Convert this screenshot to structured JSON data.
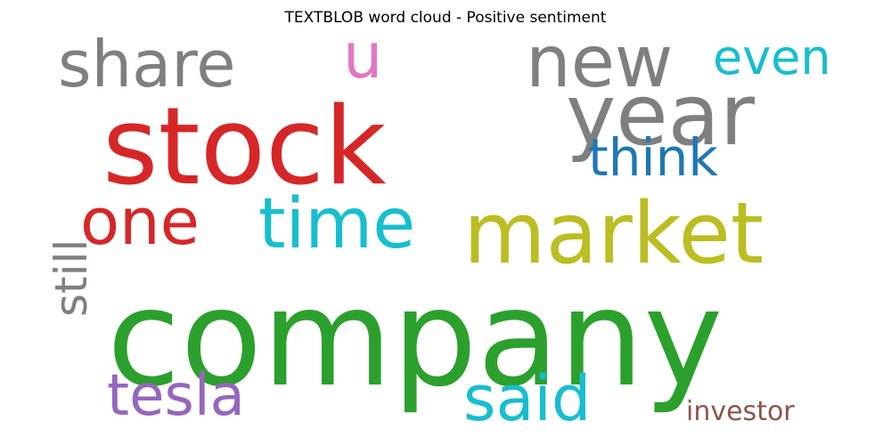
{
  "chart_data": {
    "type": "wordcloud",
    "title": "TEXTBLOB word cloud - Positive sentiment",
    "words": [
      {
        "text": "company",
        "size": 150,
        "color": "#2ca02c"
      },
      {
        "text": "stock",
        "size": 120,
        "color": "#d62728"
      },
      {
        "text": "market",
        "size": 95,
        "color": "#bcbd22"
      },
      {
        "text": "year",
        "size": 95,
        "color": "#7f7f7f"
      },
      {
        "text": "new",
        "size": 80,
        "color": "#7f7f7f"
      },
      {
        "text": "time",
        "size": 78,
        "color": "#17becf"
      },
      {
        "text": "share",
        "size": 72,
        "color": "#7f7f7f"
      },
      {
        "text": "one",
        "size": 72,
        "color": "#d62728"
      },
      {
        "text": "u",
        "size": 70,
        "color": "#e377c2"
      },
      {
        "text": "said",
        "size": 70,
        "color": "#17becf"
      },
      {
        "text": "tesla",
        "size": 64,
        "color": "#9467bd"
      },
      {
        "text": "think",
        "size": 58,
        "color": "#1f77b4"
      },
      {
        "text": "even",
        "size": 54,
        "color": "#17becf"
      },
      {
        "text": "still",
        "size": 50,
        "color": "#7f7f7f"
      },
      {
        "text": "investor",
        "size": 30,
        "color": "#8c564b"
      }
    ]
  }
}
